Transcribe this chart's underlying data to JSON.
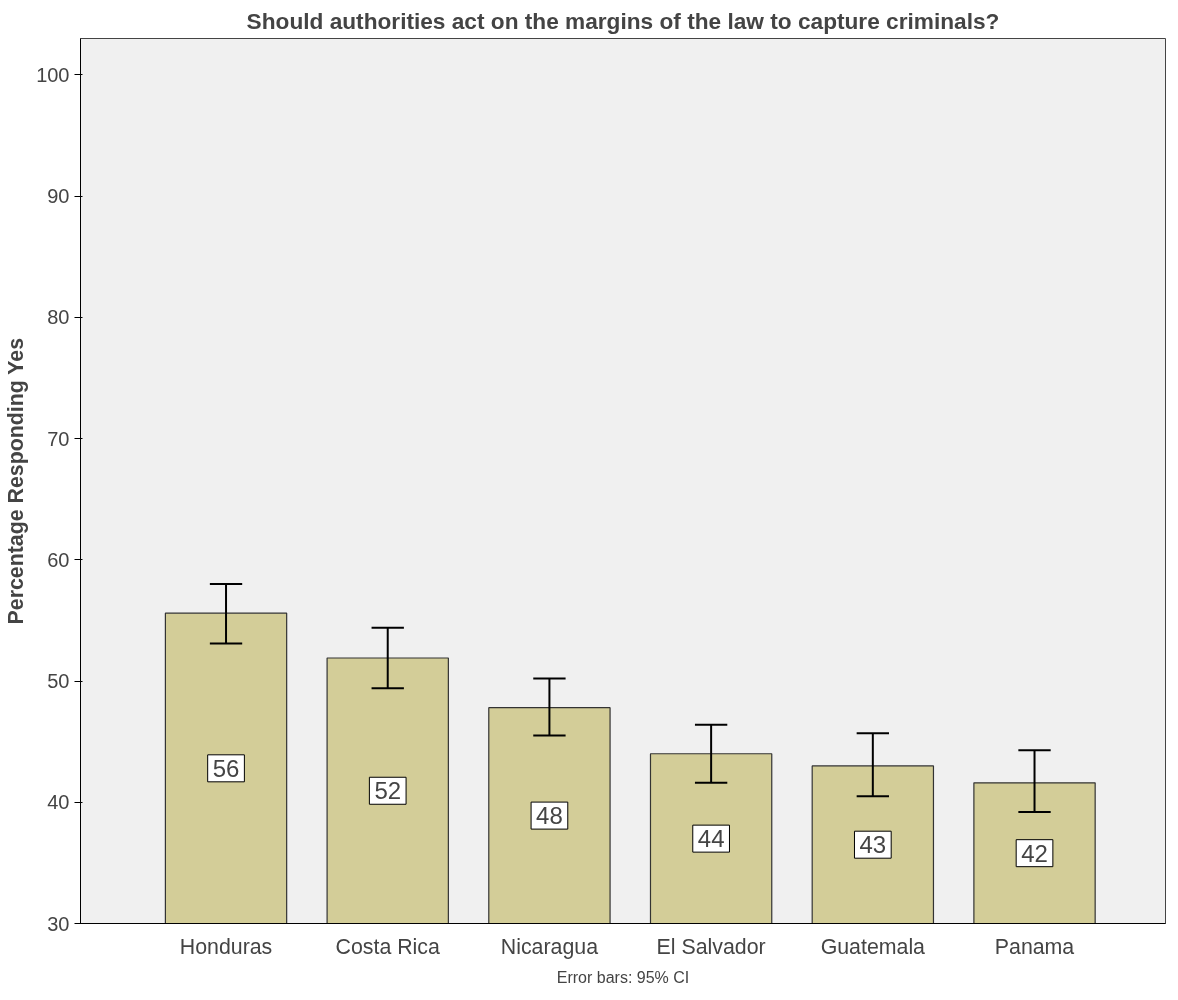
{
  "chart_data": {
    "type": "bar",
    "title": "Should authorities act on the margins of the law to capture criminals?",
    "ylabel": "Percentage Responding Yes",
    "categories": [
      "Honduras",
      "Costa Rica",
      "Nicaragua",
      "El Salvador",
      "Guatemala",
      "Panama"
    ],
    "values": [
      55.6,
      51.9,
      47.8,
      44.0,
      43.0,
      41.6
    ],
    "errors": [
      [
        53.1,
        58.0
      ],
      [
        49.4,
        54.4
      ],
      [
        45.5,
        50.2
      ],
      [
        41.6,
        46.4
      ],
      [
        40.5,
        45.7
      ],
      [
        39.2,
        44.3
      ]
    ],
    "value_labels": [
      "56",
      "52",
      "48",
      "44",
      "43",
      "42"
    ],
    "color": "#d3cd98",
    "ylim": [
      30,
      103
    ],
    "yticks": [
      30,
      40,
      50,
      60,
      70,
      80,
      90,
      100
    ],
    "annotations": [
      "Error bars: 95% CI"
    ]
  }
}
